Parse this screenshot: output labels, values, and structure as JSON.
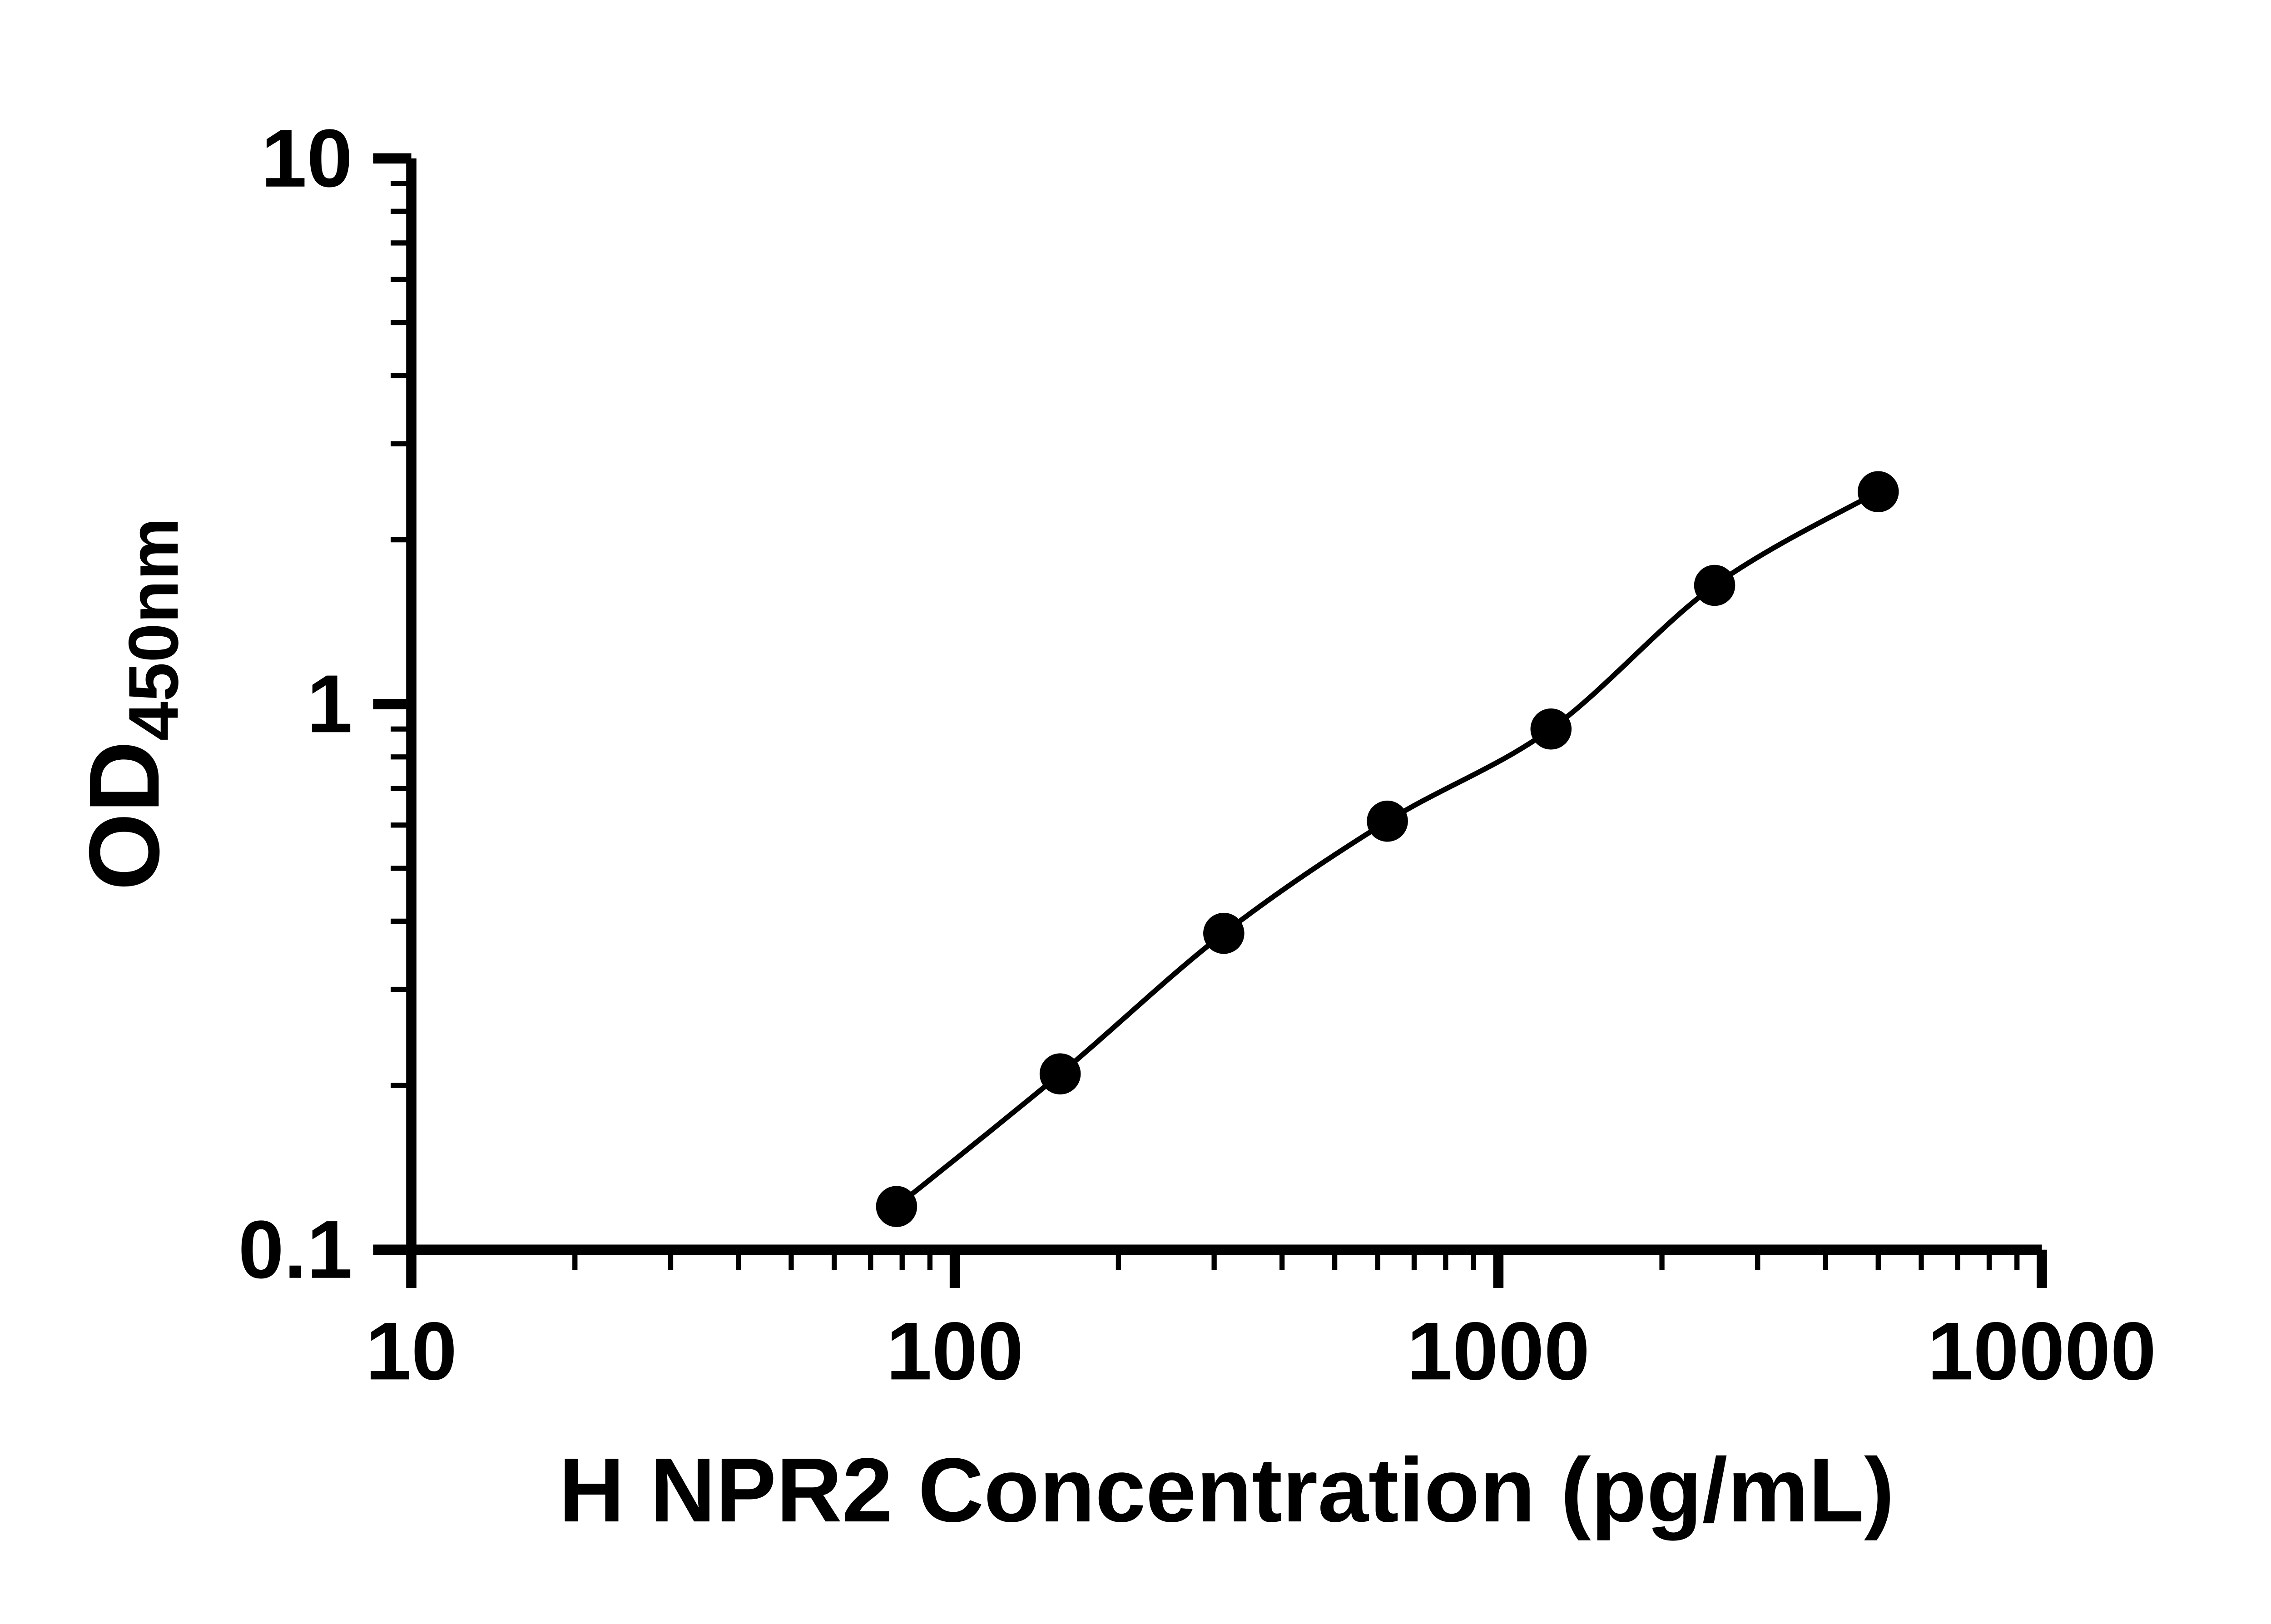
{
  "chart_data": {
    "type": "scatter",
    "title": "",
    "xlabel": "H NPR2 Concentration (pg/mL)",
    "ylabel_main": "OD",
    "ylabel_sub": "450nm",
    "x_scale": "log10",
    "y_scale": "log10",
    "xlim": [
      10,
      10000
    ],
    "ylim": [
      0.1,
      10
    ],
    "grid": false,
    "minor_ticks": true,
    "legend": "none",
    "x_ticks": [
      {
        "value": 10,
        "label": "10"
      },
      {
        "value": 100,
        "label": "100"
      },
      {
        "value": 1000,
        "label": "1000"
      },
      {
        "value": 10000,
        "label": "10000"
      }
    ],
    "y_ticks": [
      {
        "value": 0.1,
        "label": "0.1"
      },
      {
        "value": 1,
        "label": "1"
      },
      {
        "value": 10,
        "label": "10"
      }
    ],
    "x": [
      78.125,
      156.25,
      312.5,
      625,
      1250,
      2500,
      5000
    ],
    "y": [
      0.12,
      0.21,
      0.38,
      0.61,
      0.9,
      1.65,
      2.45
    ],
    "line": "smooth-fit",
    "marker": "filled-circle"
  },
  "colors": {
    "background": "#ffffff",
    "axis": "#000000",
    "marker": "#000000",
    "line": "#000000"
  }
}
